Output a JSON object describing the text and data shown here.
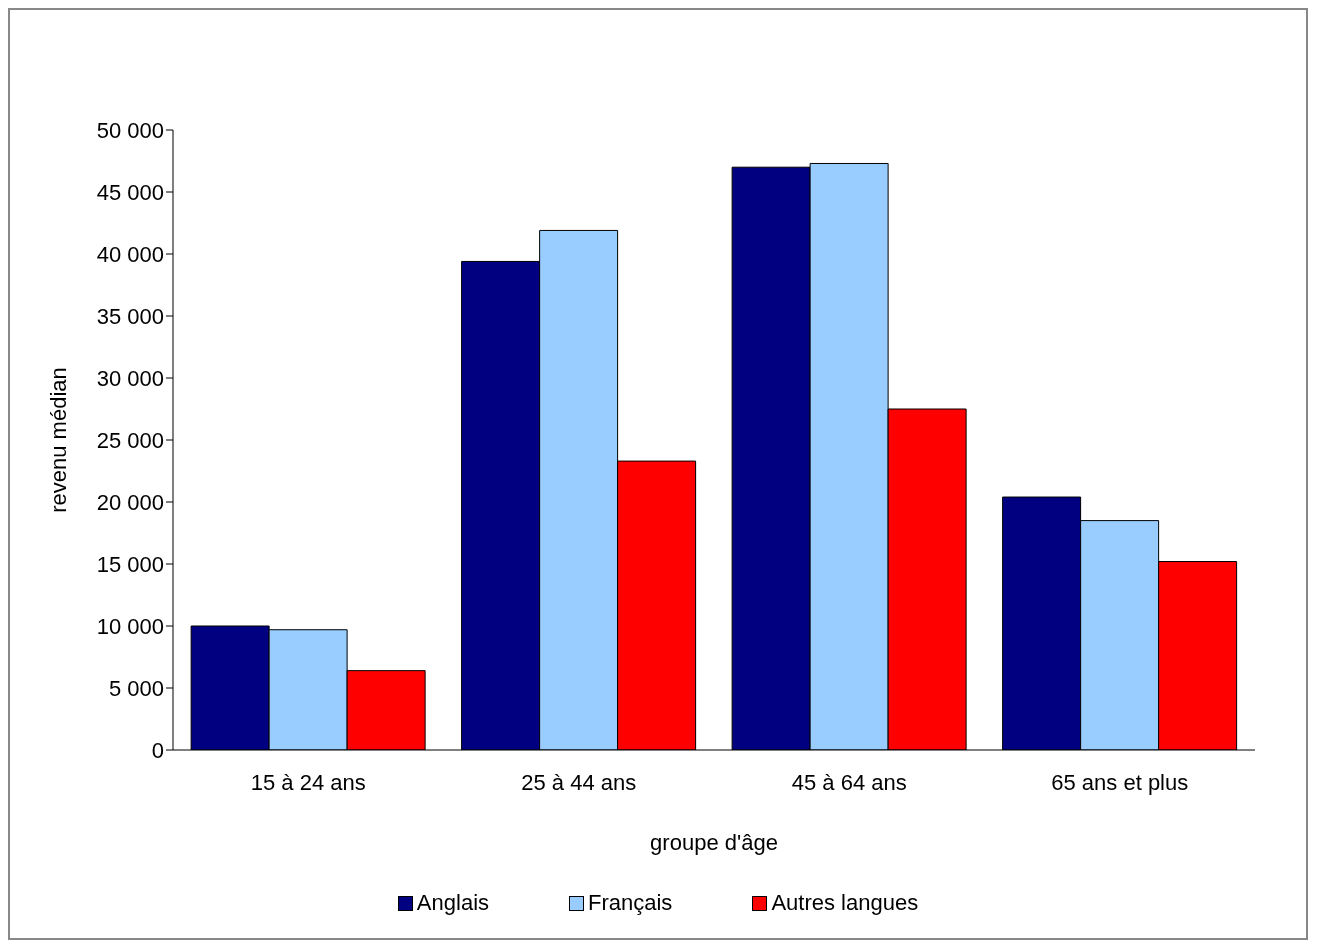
{
  "chart_data": {
    "type": "bar",
    "xlabel": "groupe d'âge",
    "ylabel": "revenu médian",
    "categories": [
      "15 à 24 ans",
      "25 à 44 ans",
      "45 à 64 ans",
      "65 ans et plus"
    ],
    "series": [
      {
        "name": "Anglais",
        "color": "#000080",
        "values": [
          10000,
          39400,
          47000,
          20400
        ]
      },
      {
        "name": "Français",
        "color": "#99ccff",
        "values": [
          9700,
          41900,
          47300,
          18500
        ]
      },
      {
        "name": "Autres langues",
        "color": "#ff0000",
        "values": [
          6400,
          23300,
          27500,
          15200
        ]
      }
    ],
    "ylim": [
      0,
      50000
    ],
    "yticks": [
      {
        "value": 0,
        "label": "0"
      },
      {
        "value": 5000,
        "label": "5 000"
      },
      {
        "value": 10000,
        "label": "10 000"
      },
      {
        "value": 15000,
        "label": "15 000"
      },
      {
        "value": 20000,
        "label": "20 000"
      },
      {
        "value": 25000,
        "label": "25 000"
      },
      {
        "value": 30000,
        "label": "30 000"
      },
      {
        "value": 35000,
        "label": "35 000"
      },
      {
        "value": 40000,
        "label": "40 000"
      },
      {
        "value": 45000,
        "label": "45 000"
      },
      {
        "value": 50000,
        "label": "50 000"
      }
    ],
    "grid": false,
    "legend": "bottom"
  }
}
